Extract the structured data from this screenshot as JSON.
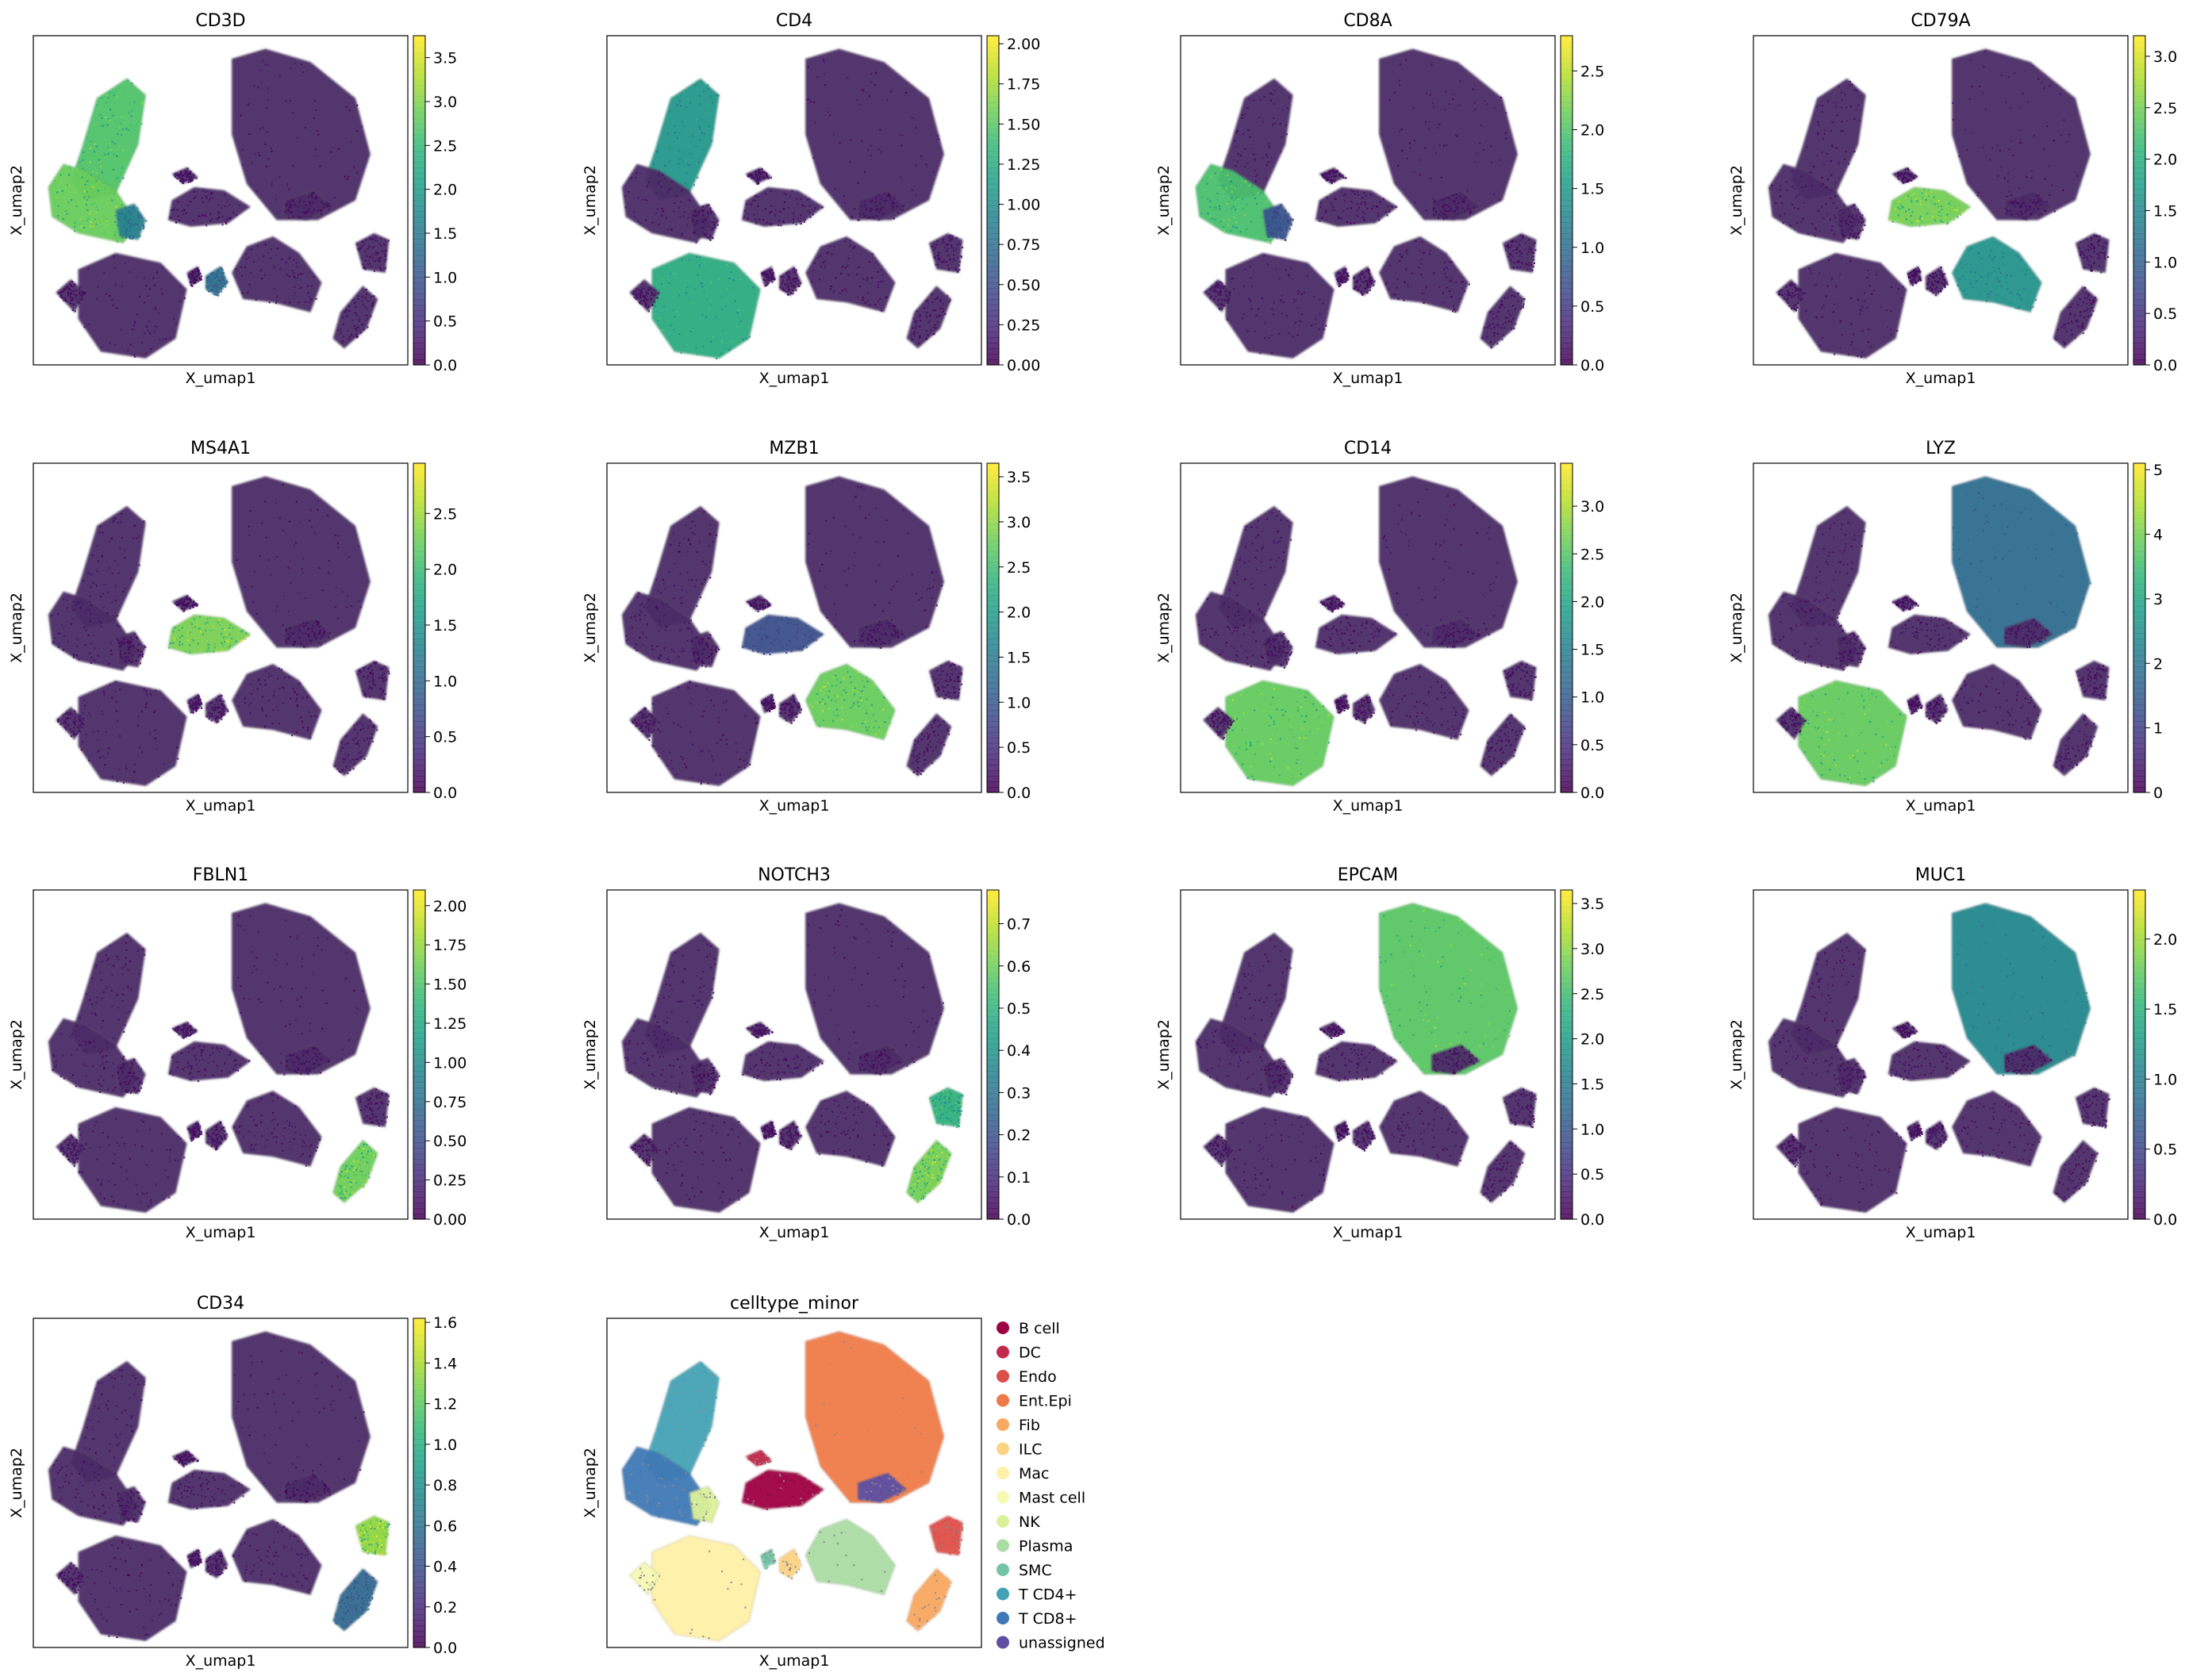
{
  "figure": {
    "xlabel": "X_umap1",
    "ylabel": "X_umap2"
  },
  "colormap": [
    "#440154",
    "#482878",
    "#3e4989",
    "#31688e",
    "#26828e",
    "#1f9e89",
    "#35b779",
    "#6ece58",
    "#b5de2b",
    "#fde725"
  ],
  "chart_data": [
    {
      "type": "scatter",
      "title": "CD3D",
      "vmax": 3.75,
      "ticks": [
        "0.0",
        "0.5",
        "1.0",
        "1.5",
        "2.0",
        "2.5",
        "3.0",
        "3.5"
      ],
      "tick_values": [
        0,
        0.5,
        1,
        1.5,
        2,
        2.5,
        3,
        3.5
      ],
      "high_expression": [
        {
          "region": "T CD8+",
          "level": 3.2
        },
        {
          "region": "T CD4+",
          "level": 3.0
        },
        {
          "region": "NK",
          "level": 1.8
        },
        {
          "region": "ILC",
          "level": 1.5
        }
      ]
    },
    {
      "type": "scatter",
      "title": "CD4",
      "vmax": 2.05,
      "ticks": [
        "0.00",
        "0.25",
        "0.50",
        "0.75",
        "1.00",
        "1.25",
        "1.50",
        "1.75",
        "2.00"
      ],
      "tick_values": [
        0,
        0.25,
        0.5,
        0.75,
        1,
        1.25,
        1.5,
        1.75,
        2
      ],
      "high_expression": [
        {
          "region": "T CD4+",
          "level": 1.2
        },
        {
          "region": "Mac",
          "level": 1.4
        }
      ]
    },
    {
      "type": "scatter",
      "title": "CD8A",
      "vmax": 2.8,
      "ticks": [
        "0.0",
        "0.5",
        "1.0",
        "1.5",
        "2.0",
        "2.5"
      ],
      "tick_values": [
        0,
        0.5,
        1,
        1.5,
        2,
        2.5
      ],
      "high_expression": [
        {
          "region": "T CD8+",
          "level": 2.2
        },
        {
          "region": "NK",
          "level": 0.8
        }
      ]
    },
    {
      "type": "scatter",
      "title": "CD79A",
      "vmax": 3.2,
      "ticks": [
        "0.0",
        "0.5",
        "1.0",
        "1.5",
        "2.0",
        "2.5",
        "3.0"
      ],
      "tick_values": [
        0,
        0.5,
        1,
        1.5,
        2,
        2.5,
        3
      ],
      "high_expression": [
        {
          "region": "B cell",
          "level": 2.8
        },
        {
          "region": "Plasma",
          "level": 1.8
        }
      ]
    },
    {
      "type": "scatter",
      "title": "MS4A1",
      "vmax": 2.95,
      "ticks": [
        "0.0",
        "0.5",
        "1.0",
        "1.5",
        "2.0",
        "2.5"
      ],
      "tick_values": [
        0,
        0.5,
        1,
        1.5,
        2,
        2.5
      ],
      "high_expression": [
        {
          "region": "B cell",
          "level": 2.6
        }
      ]
    },
    {
      "type": "scatter",
      "title": "MZB1",
      "vmax": 3.65,
      "ticks": [
        "0.0",
        "0.5",
        "1.0",
        "1.5",
        "2.0",
        "2.5",
        "3.0",
        "3.5"
      ],
      "tick_values": [
        0,
        0.5,
        1,
        1.5,
        2,
        2.5,
        3,
        3.5
      ],
      "high_expression": [
        {
          "region": "Plasma",
          "level": 3.1
        },
        {
          "region": "B cell",
          "level": 1.0
        }
      ]
    },
    {
      "type": "scatter",
      "title": "CD14",
      "vmax": 3.45,
      "ticks": [
        "0.0",
        "0.5",
        "1.0",
        "1.5",
        "2.0",
        "2.5",
        "3.0"
      ],
      "tick_values": [
        0,
        0.5,
        1,
        1.5,
        2,
        2.5,
        3
      ],
      "high_expression": [
        {
          "region": "Mac",
          "level": 2.9
        }
      ]
    },
    {
      "type": "scatter",
      "title": "LYZ",
      "vmax": 5.1,
      "ticks": [
        "0",
        "1",
        "2",
        "3",
        "4",
        "5"
      ],
      "tick_values": [
        0,
        1,
        2,
        3,
        4,
        5
      ],
      "high_expression": [
        {
          "region": "Mac",
          "level": 4.3
        },
        {
          "region": "Ent.Epi",
          "level": 2.0
        }
      ]
    },
    {
      "type": "scatter",
      "title": "FBLN1",
      "vmax": 2.1,
      "ticks": [
        "0.00",
        "0.25",
        "0.50",
        "0.75",
        "1.00",
        "1.25",
        "1.50",
        "1.75",
        "2.00"
      ],
      "tick_values": [
        0,
        0.25,
        0.5,
        0.75,
        1,
        1.25,
        1.5,
        1.75,
        2
      ],
      "high_expression": [
        {
          "region": "Fib",
          "level": 1.8
        }
      ]
    },
    {
      "type": "scatter",
      "title": "NOTCH3",
      "vmax": 0.78,
      "ticks": [
        "0.0",
        "0.1",
        "0.2",
        "0.3",
        "0.4",
        "0.5",
        "0.6",
        "0.7"
      ],
      "tick_values": [
        0,
        0.1,
        0.2,
        0.3,
        0.4,
        0.5,
        0.6,
        0.7
      ],
      "high_expression": [
        {
          "region": "Fib",
          "level": 0.68
        },
        {
          "region": "Endo",
          "level": 0.55
        }
      ]
    },
    {
      "type": "scatter",
      "title": "EPCAM",
      "vmax": 3.65,
      "ticks": [
        "0.0",
        "0.5",
        "1.0",
        "1.5",
        "2.0",
        "2.5",
        "3.0",
        "3.5"
      ],
      "tick_values": [
        0,
        0.5,
        1,
        1.5,
        2,
        2.5,
        3,
        3.5
      ],
      "high_expression": [
        {
          "region": "Ent.Epi",
          "level": 3.0
        }
      ]
    },
    {
      "type": "scatter",
      "title": "MUC1",
      "vmax": 2.35,
      "ticks": [
        "0.0",
        "0.5",
        "1.0",
        "1.5",
        "2.0"
      ],
      "tick_values": [
        0,
        0.5,
        1,
        1.5,
        2
      ],
      "high_expression": [
        {
          "region": "Ent.Epi",
          "level": 1.2
        }
      ]
    },
    {
      "type": "scatter",
      "title": "CD34",
      "vmax": 1.62,
      "ticks": [
        "0.0",
        "0.2",
        "0.4",
        "0.6",
        "0.8",
        "1.0",
        "1.2",
        "1.4",
        "1.6"
      ],
      "tick_values": [
        0,
        0.2,
        0.4,
        0.6,
        0.8,
        1,
        1.2,
        1.4,
        1.6
      ],
      "high_expression": [
        {
          "region": "Endo",
          "level": 1.5
        },
        {
          "region": "Fib",
          "level": 0.6
        }
      ]
    },
    {
      "type": "scatter",
      "title": "celltype_minor",
      "categorical": true,
      "legend": [
        {
          "name": "B cell",
          "color": "#9e0142"
        },
        {
          "name": "DC",
          "color": "#c22a4c"
        },
        {
          "name": "Endo",
          "color": "#dd4f4a"
        },
        {
          "name": "Ent.Epi",
          "color": "#ef7b4a"
        },
        {
          "name": "Fib",
          "color": "#f9a85f"
        },
        {
          "name": "ILC",
          "color": "#fdd383"
        },
        {
          "name": "Mac",
          "color": "#fef0a7"
        },
        {
          "name": "Mast cell",
          "color": "#f6f9b4"
        },
        {
          "name": "NK",
          "color": "#dbf09a"
        },
        {
          "name": "Plasma",
          "color": "#abdca4"
        },
        {
          "name": "SMC",
          "color": "#73c4a6"
        },
        {
          "name": "T CD4+",
          "color": "#43a2b4"
        },
        {
          "name": "T CD8+",
          "color": "#3f78b5"
        },
        {
          "name": "unassigned",
          "color": "#5e4fa2"
        }
      ]
    }
  ]
}
